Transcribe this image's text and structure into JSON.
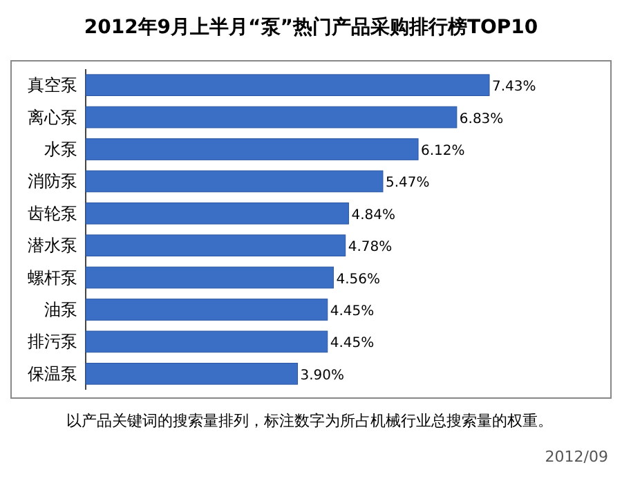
{
  "chart_data": {
    "type": "bar",
    "orientation": "horizontal",
    "title": "2012年9月上半月“泵”热门产品采购排行榜TOP10",
    "categories": [
      "真空泵",
      "离心泵",
      "水泵",
      "消防泵",
      "齿轮泵",
      "潜水泵",
      "螺杆泵",
      "油泵",
      "排污泵",
      "保温泵"
    ],
    "values": [
      7.43,
      6.83,
      6.12,
      5.47,
      4.84,
      4.78,
      4.56,
      4.45,
      4.45,
      3.9
    ],
    "value_labels": [
      "7.43%",
      "6.83%",
      "6.12%",
      "5.47%",
      "4.84%",
      "4.78%",
      "4.56%",
      "4.45%",
      "4.45%",
      "3.90%"
    ],
    "color": "#3b6fc6",
    "annotations": [
      "以产品关键词的搜索量排列，标注数字为所占机械行业总搜索量的权重。",
      "2012/09"
    ]
  }
}
